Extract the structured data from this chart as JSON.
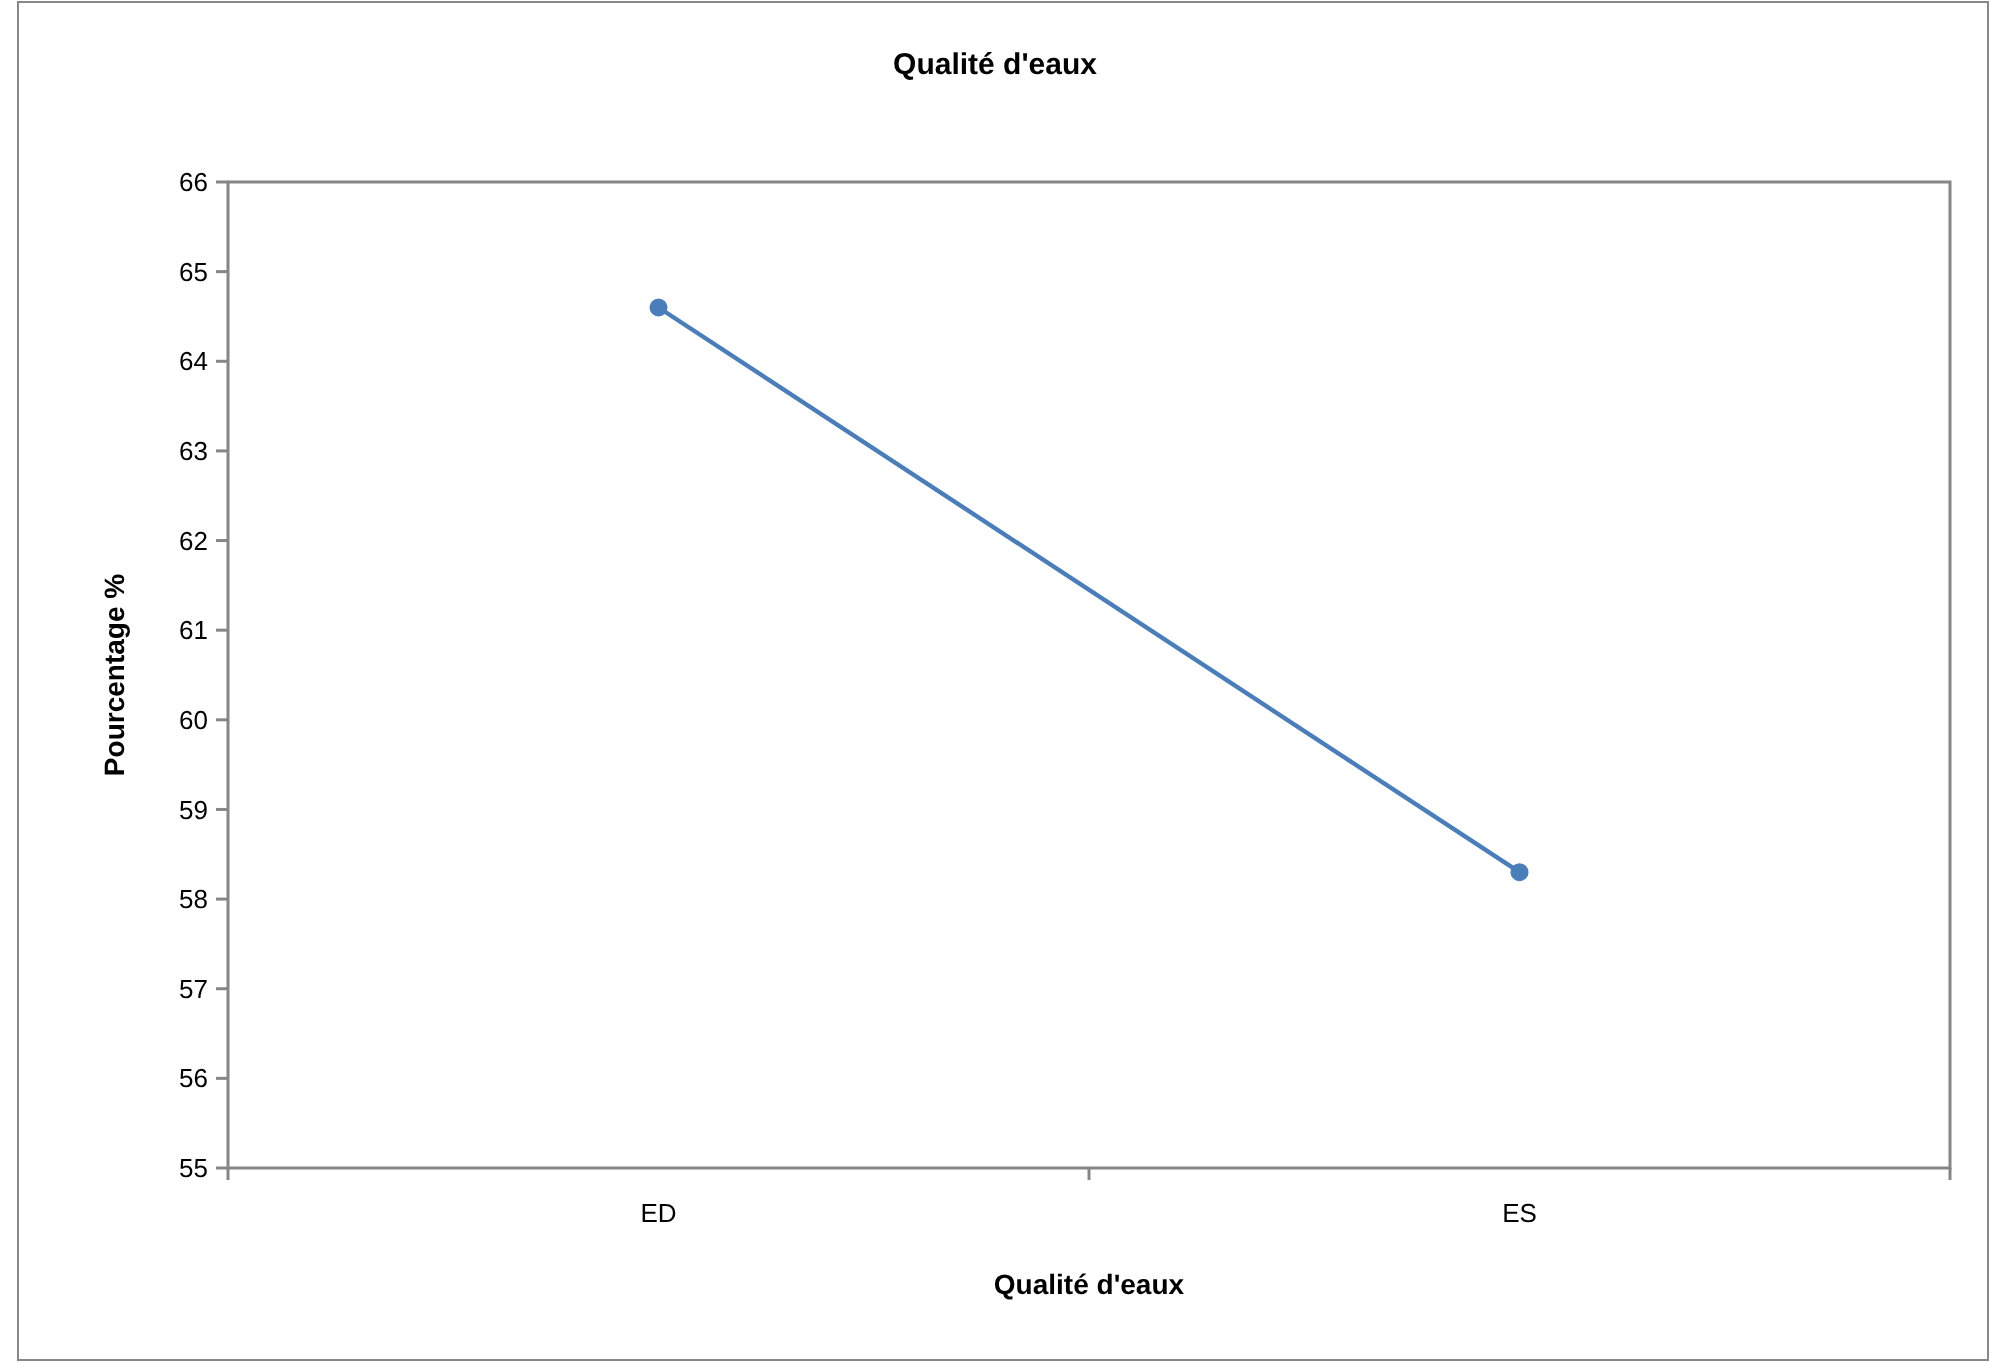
{
  "chart_data": {
    "type": "line",
    "title": "Qualité d'eaux",
    "xlabel": "Qualité d'eaux",
    "ylabel": "Pourcentage %",
    "categories": [
      "ED",
      "ES"
    ],
    "series": [
      {
        "color": "#4a7ebb",
        "values": [
          64.6,
          58.3
        ]
      }
    ],
    "ylim": [
      55,
      66
    ],
    "yticks": [
      55,
      56,
      57,
      58,
      59,
      60,
      61,
      62,
      63,
      64,
      65,
      66
    ],
    "grid": false,
    "marker": "circle",
    "line_style": "solid"
  }
}
